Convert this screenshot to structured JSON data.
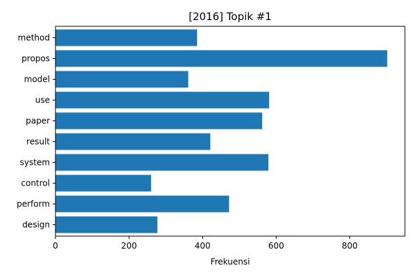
{
  "chart_data": {
    "type": "bar",
    "orientation": "horizontal",
    "title": "[2016] Topik #1",
    "xlabel": "Frekuensi",
    "ylabel": "",
    "categories": [
      "method",
      "propos",
      "model",
      "use",
      "paper",
      "result",
      "system",
      "control",
      "perform",
      "design"
    ],
    "values": [
      385,
      902,
      361,
      581,
      562,
      421,
      579,
      260,
      472,
      277
    ],
    "xlim": [
      0,
      950
    ],
    "xticks": [
      0,
      200,
      400,
      600,
      800
    ],
    "bar_color": "#1f77b4",
    "grid": false,
    "legend": "none"
  }
}
